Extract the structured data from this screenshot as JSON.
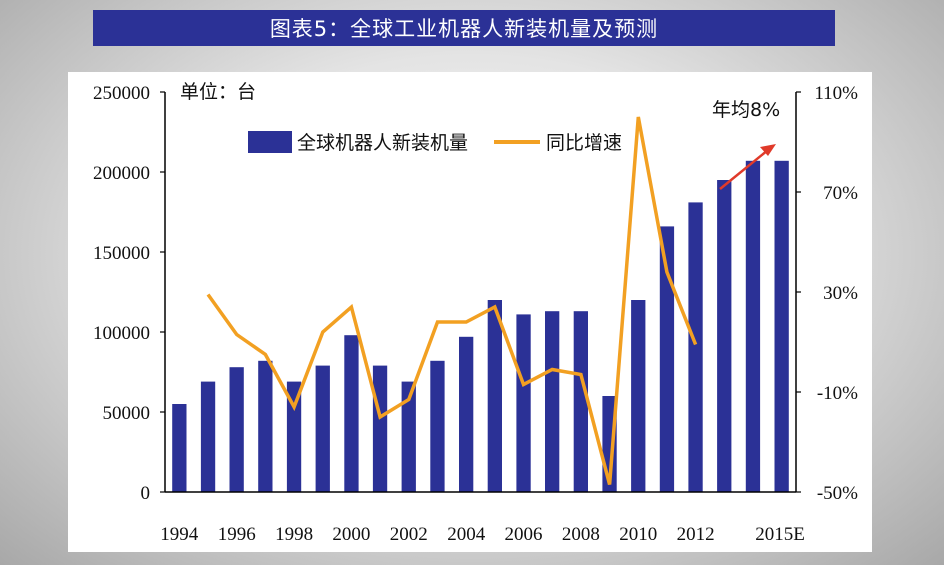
{
  "banner": {
    "title": "图表5：全球工业机器人新装机量及预测"
  },
  "chart_data": {
    "type": "bar",
    "title": "图表5：全球工业机器人新装机量及预测",
    "unit_label": "单位：台",
    "categories": [
      "1994",
      "1995",
      "1996",
      "1997",
      "1998",
      "1999",
      "2000",
      "2001",
      "2002",
      "2003",
      "2004",
      "2005",
      "2006",
      "2007",
      "2008",
      "2009",
      "2010",
      "2011",
      "2012",
      "2013",
      "2014",
      "2015E"
    ],
    "x_tick_labels": [
      "1994",
      "1996",
      "1998",
      "2000",
      "2002",
      "2004",
      "2006",
      "2008",
      "2010",
      "2012",
      "2015E"
    ],
    "series": [
      {
        "name": "全球机器人新装机量",
        "kind": "bar",
        "axis": "left",
        "color": "#2b3196",
        "values": [
          55000,
          69000,
          78000,
          82000,
          69000,
          79000,
          98000,
          79000,
          69000,
          82000,
          97000,
          120000,
          111000,
          113000,
          113000,
          60000,
          120000,
          166000,
          181000,
          195000,
          207000,
          207000
        ]
      },
      {
        "name": "同比增速",
        "kind": "line",
        "axis": "right",
        "color": "#f2a022",
        "values": [
          null,
          0.29,
          0.13,
          0.05,
          -0.16,
          0.14,
          0.24,
          -0.2,
          -0.13,
          0.18,
          0.18,
          0.24,
          -0.07,
          -0.01,
          -0.03,
          -0.47,
          1.0,
          0.38,
          0.09,
          null,
          null,
          null
        ]
      }
    ],
    "left_axis": {
      "min": 0,
      "max": 250000,
      "ticks": [
        "250000",
        "200000",
        "150000",
        "100000",
        "50000",
        "0"
      ],
      "tick_values": [
        250000,
        200000,
        150000,
        100000,
        50000,
        0
      ]
    },
    "right_axis": {
      "min": -0.5,
      "max": 1.1,
      "ticks": [
        "110%",
        "70%",
        "30%",
        "-10%",
        "-50%"
      ],
      "tick_values": [
        1.1,
        0.7,
        0.3,
        -0.1,
        -0.5
      ]
    },
    "legend": {
      "placement": "top-left",
      "bar_label": "全球机器人新装机量",
      "line_label": "同比增速"
    },
    "annotation": {
      "text": "年均8%",
      "arrow_color": "#e03a2a"
    },
    "grid": false
  }
}
